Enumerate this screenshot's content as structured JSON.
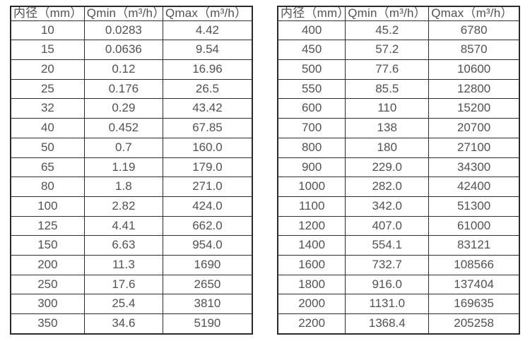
{
  "colors": {
    "background": "#ffffff",
    "border": "#2b2b2b",
    "text": "#525252"
  },
  "chart_data": [
    {
      "type": "table",
      "title": "",
      "columns": [
        "内径（mm）",
        "Qmin（m³/h）",
        "Qmax（m³/h）"
      ],
      "rows": [
        [
          "10",
          "0.0283",
          "4.42"
        ],
        [
          "15",
          "0.0636",
          "9.54"
        ],
        [
          "20",
          "0.12",
          "16.96"
        ],
        [
          "25",
          "0.176",
          "26.5"
        ],
        [
          "32",
          "0.29",
          "43.42"
        ],
        [
          "40",
          "0.452",
          "67.85"
        ],
        [
          "50",
          "0.7",
          "160.0"
        ],
        [
          "65",
          "1.19",
          "179.0"
        ],
        [
          "80",
          "1.8",
          "271.0"
        ],
        [
          "100",
          "2.82",
          "424.0"
        ],
        [
          "125",
          "4.41",
          "662.0"
        ],
        [
          "150",
          "6.63",
          "954.0"
        ],
        [
          "200",
          "11.3",
          "1690"
        ],
        [
          "250",
          "17.6",
          "2650"
        ],
        [
          "300",
          "25.4",
          "3810"
        ],
        [
          "350",
          "34.6",
          "5190"
        ]
      ]
    },
    {
      "type": "table",
      "title": "",
      "columns": [
        "内径（mm）",
        "Qmin（m³/h）",
        "Qmax（m³/h）"
      ],
      "rows": [
        [
          "400",
          "45.2",
          "6780"
        ],
        [
          "450",
          "57.2",
          "8570"
        ],
        [
          "500",
          "77.6",
          "10600"
        ],
        [
          "550",
          "85.5",
          "12800"
        ],
        [
          "600",
          "110",
          "15200"
        ],
        [
          "700",
          "138",
          "20700"
        ],
        [
          "800",
          "180",
          "27100"
        ],
        [
          "900",
          "229.0",
          "34300"
        ],
        [
          "1000",
          "282.0",
          "42400"
        ],
        [
          "1100",
          "342.0",
          "51300"
        ],
        [
          "1200",
          "407.0",
          "61000"
        ],
        [
          "1400",
          "554.1",
          "83121"
        ],
        [
          "1600",
          "732.7",
          "108566"
        ],
        [
          "1800",
          "916.0",
          "137404"
        ],
        [
          "2000",
          "1131.0",
          "169635"
        ],
        [
          "2200",
          "1368.4",
          "205258"
        ]
      ]
    }
  ]
}
